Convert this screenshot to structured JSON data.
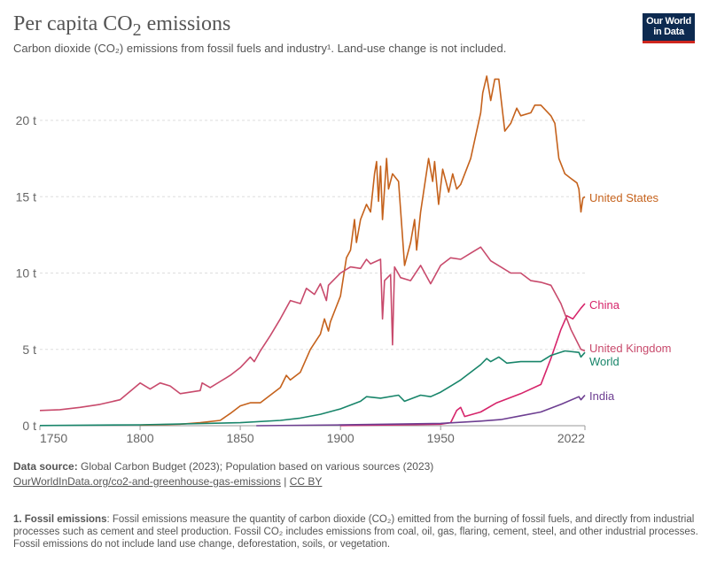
{
  "header": {
    "title": "Per capita CO",
    "title_sub": "2",
    "title_rest": " emissions",
    "subtitle": "Carbon dioxide (CO₂) emissions from fossil fuels and industry¹. Land-use change is not included.",
    "logo": "Our World in Data"
  },
  "chart_data": {
    "type": "line",
    "xlim": [
      1750,
      2022
    ],
    "ylim": [
      0,
      23
    ],
    "x_ticks": [
      "1750",
      "1800",
      "1850",
      "1900",
      "1950",
      "2022"
    ],
    "y_ticks": [
      "0 t",
      "5 t",
      "10 t",
      "15 t",
      "20 t"
    ],
    "grid": "horizontal dashed",
    "legend": "inline labels at right",
    "series": [
      {
        "name": "United States",
        "color": "#c5621c",
        "points": [
          [
            1800,
            0.04
          ],
          [
            1820,
            0.1
          ],
          [
            1830,
            0.2
          ],
          [
            1840,
            0.35
          ],
          [
            1845,
            0.8
          ],
          [
            1850,
            1.3
          ],
          [
            1855,
            1.5
          ],
          [
            1860,
            1.5
          ],
          [
            1865,
            2.0
          ],
          [
            1870,
            2.5
          ],
          [
            1873,
            3.3
          ],
          [
            1875,
            3.0
          ],
          [
            1880,
            3.5
          ],
          [
            1885,
            5.0
          ],
          [
            1890,
            6.0
          ],
          [
            1892,
            7.0
          ],
          [
            1894,
            6.2
          ],
          [
            1895,
            6.8
          ],
          [
            1900,
            8.5
          ],
          [
            1903,
            11.0
          ],
          [
            1905,
            11.5
          ],
          [
            1907,
            13.5
          ],
          [
            1908,
            12.0
          ],
          [
            1910,
            13.5
          ],
          [
            1913,
            14.5
          ],
          [
            1915,
            14.0
          ],
          [
            1917,
            16.5
          ],
          [
            1918,
            17.3
          ],
          [
            1919,
            14.7
          ],
          [
            1920,
            17.0
          ],
          [
            1921,
            13.5
          ],
          [
            1923,
            17.5
          ],
          [
            1924,
            15.5
          ],
          [
            1926,
            16.5
          ],
          [
            1929,
            16.0
          ],
          [
            1932,
            10.5
          ],
          [
            1935,
            12.0
          ],
          [
            1937,
            13.5
          ],
          [
            1938,
            11.5
          ],
          [
            1940,
            14.0
          ],
          [
            1944,
            17.5
          ],
          [
            1946,
            16.0
          ],
          [
            1947,
            17.3
          ],
          [
            1949,
            14.5
          ],
          [
            1951,
            16.8
          ],
          [
            1954,
            15.3
          ],
          [
            1956,
            16.5
          ],
          [
            1958,
            15.5
          ],
          [
            1960,
            15.8
          ],
          [
            1965,
            17.5
          ],
          [
            1970,
            20.5
          ],
          [
            1971,
            21.8
          ],
          [
            1973,
            22.9
          ],
          [
            1975,
            21.3
          ],
          [
            1977,
            22.7
          ],
          [
            1979,
            22.7
          ],
          [
            1982,
            19.3
          ],
          [
            1985,
            19.8
          ],
          [
            1988,
            20.8
          ],
          [
            1990,
            20.3
          ],
          [
            1995,
            20.5
          ],
          [
            1997,
            21.0
          ],
          [
            2000,
            21.0
          ],
          [
            2005,
            20.3
          ],
          [
            2007,
            19.8
          ],
          [
            2009,
            17.5
          ],
          [
            2012,
            16.5
          ],
          [
            2015,
            16.2
          ],
          [
            2018,
            15.9
          ],
          [
            2019,
            15.5
          ],
          [
            2020,
            14.0
          ],
          [
            2021,
            14.9
          ],
          [
            2022,
            15.0
          ]
        ]
      },
      {
        "name": "China",
        "color": "#d6246a",
        "points": [
          [
            1900,
            0.01
          ],
          [
            1950,
            0.1
          ],
          [
            1955,
            0.2
          ],
          [
            1958,
            1.0
          ],
          [
            1960,
            1.2
          ],
          [
            1962,
            0.6
          ],
          [
            1970,
            0.9
          ],
          [
            1978,
            1.5
          ],
          [
            1990,
            2.1
          ],
          [
            2000,
            2.7
          ],
          [
            2005,
            4.4
          ],
          [
            2010,
            6.3
          ],
          [
            2013,
            7.2
          ],
          [
            2016,
            7.0
          ],
          [
            2020,
            7.7
          ],
          [
            2022,
            8.0
          ]
        ]
      },
      {
        "name": "United Kingdom",
        "color": "#c84a6c",
        "points": [
          [
            1750,
            1.0
          ],
          [
            1760,
            1.05
          ],
          [
            1770,
            1.2
          ],
          [
            1780,
            1.4
          ],
          [
            1790,
            1.7
          ],
          [
            1800,
            2.8
          ],
          [
            1805,
            2.4
          ],
          [
            1810,
            2.8
          ],
          [
            1815,
            2.6
          ],
          [
            1820,
            2.1
          ],
          [
            1825,
            2.2
          ],
          [
            1830,
            2.3
          ],
          [
            1831,
            2.8
          ],
          [
            1835,
            2.5
          ],
          [
            1840,
            2.9
          ],
          [
            1845,
            3.3
          ],
          [
            1850,
            3.8
          ],
          [
            1855,
            4.5
          ],
          [
            1857,
            4.2
          ],
          [
            1860,
            4.9
          ],
          [
            1865,
            5.9
          ],
          [
            1870,
            7.0
          ],
          [
            1875,
            8.2
          ],
          [
            1880,
            8.0
          ],
          [
            1883,
            9.0
          ],
          [
            1887,
            8.6
          ],
          [
            1890,
            9.3
          ],
          [
            1893,
            8.2
          ],
          [
            1894,
            9.2
          ],
          [
            1900,
            10.0
          ],
          [
            1905,
            10.4
          ],
          [
            1910,
            10.3
          ],
          [
            1913,
            10.9
          ],
          [
            1915,
            10.6
          ],
          [
            1920,
            10.9
          ],
          [
            1921,
            7.0
          ],
          [
            1922,
            9.5
          ],
          [
            1925,
            9.9
          ],
          [
            1926,
            5.3
          ],
          [
            1927,
            10.4
          ],
          [
            1930,
            9.7
          ],
          [
            1935,
            9.5
          ],
          [
            1940,
            10.5
          ],
          [
            1945,
            9.3
          ],
          [
            1950,
            10.5
          ],
          [
            1955,
            11.0
          ],
          [
            1960,
            10.9
          ],
          [
            1965,
            11.3
          ],
          [
            1970,
            11.7
          ],
          [
            1975,
            10.8
          ],
          [
            1980,
            10.4
          ],
          [
            1985,
            10.0
          ],
          [
            1990,
            10.0
          ],
          [
            1995,
            9.5
          ],
          [
            2000,
            9.4
          ],
          [
            2005,
            9.2
          ],
          [
            2010,
            8.0
          ],
          [
            2015,
            6.3
          ],
          [
            2020,
            5.0
          ],
          [
            2022,
            4.9
          ]
        ]
      },
      {
        "name": "World",
        "color": "#18856a",
        "points": [
          [
            1750,
            0.01
          ],
          [
            1800,
            0.06
          ],
          [
            1850,
            0.2
          ],
          [
            1870,
            0.35
          ],
          [
            1880,
            0.5
          ],
          [
            1890,
            0.75
          ],
          [
            1900,
            1.1
          ],
          [
            1910,
            1.6
          ],
          [
            1913,
            1.9
          ],
          [
            1920,
            1.8
          ],
          [
            1929,
            2.0
          ],
          [
            1932,
            1.6
          ],
          [
            1940,
            2.0
          ],
          [
            1945,
            1.9
          ],
          [
            1950,
            2.2
          ],
          [
            1960,
            3.0
          ],
          [
            1970,
            4.0
          ],
          [
            1973,
            4.4
          ],
          [
            1975,
            4.2
          ],
          [
            1979,
            4.5
          ],
          [
            1983,
            4.1
          ],
          [
            1990,
            4.2
          ],
          [
            2000,
            4.2
          ],
          [
            2005,
            4.6
          ],
          [
            2012,
            4.9
          ],
          [
            2019,
            4.8
          ],
          [
            2020,
            4.5
          ],
          [
            2022,
            4.8
          ]
        ]
      },
      {
        "name": "India",
        "color": "#6d3e91",
        "points": [
          [
            1858,
            0.0
          ],
          [
            1900,
            0.05
          ],
          [
            1950,
            0.15
          ],
          [
            1970,
            0.3
          ],
          [
            1980,
            0.4
          ],
          [
            1990,
            0.65
          ],
          [
            2000,
            0.9
          ],
          [
            2010,
            1.4
          ],
          [
            2019,
            1.9
          ],
          [
            2020,
            1.7
          ],
          [
            2022,
            2.0
          ]
        ]
      }
    ]
  },
  "source": {
    "label": "Data source:",
    "text": " Global Carbon Budget (2023); Population based on various sources (2023)",
    "link": "OurWorldInData.org/co2-and-greenhouse-gas-emissions",
    "sep": " | ",
    "license": "CC BY"
  },
  "footnote": {
    "label": "1. Fossil emissions",
    "text": ": Fossil emissions measure the quantity of carbon dioxide (CO₂) emitted from the burning of fossil fuels, and directly from industrial processes such as cement and steel production. Fossil CO₂ includes emissions from coal, oil, gas, flaring, cement, steel, and other industrial processes. Fossil emissions do not include land use change, deforestation, soils, or vegetation."
  }
}
